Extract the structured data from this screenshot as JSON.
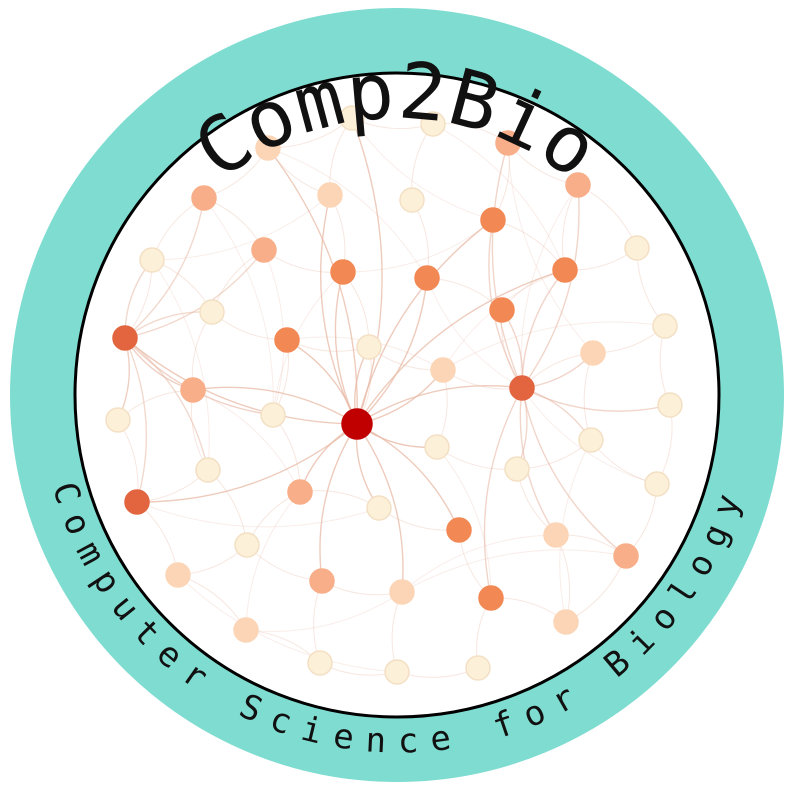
{
  "logo": {
    "title": "Comp2Bio",
    "subtitle": "Computer Science for Biology",
    "colors": {
      "ring": "#7fdcd1",
      "inner": "#ffffff",
      "outline": "#000000",
      "text": "#111111",
      "edge": "#e8b9a6",
      "node_palette": [
        "#fdf0d8",
        "#fbd5b5",
        "#f8ae88",
        "#f28854",
        "#e26540",
        "#c00000"
      ]
    }
  }
}
